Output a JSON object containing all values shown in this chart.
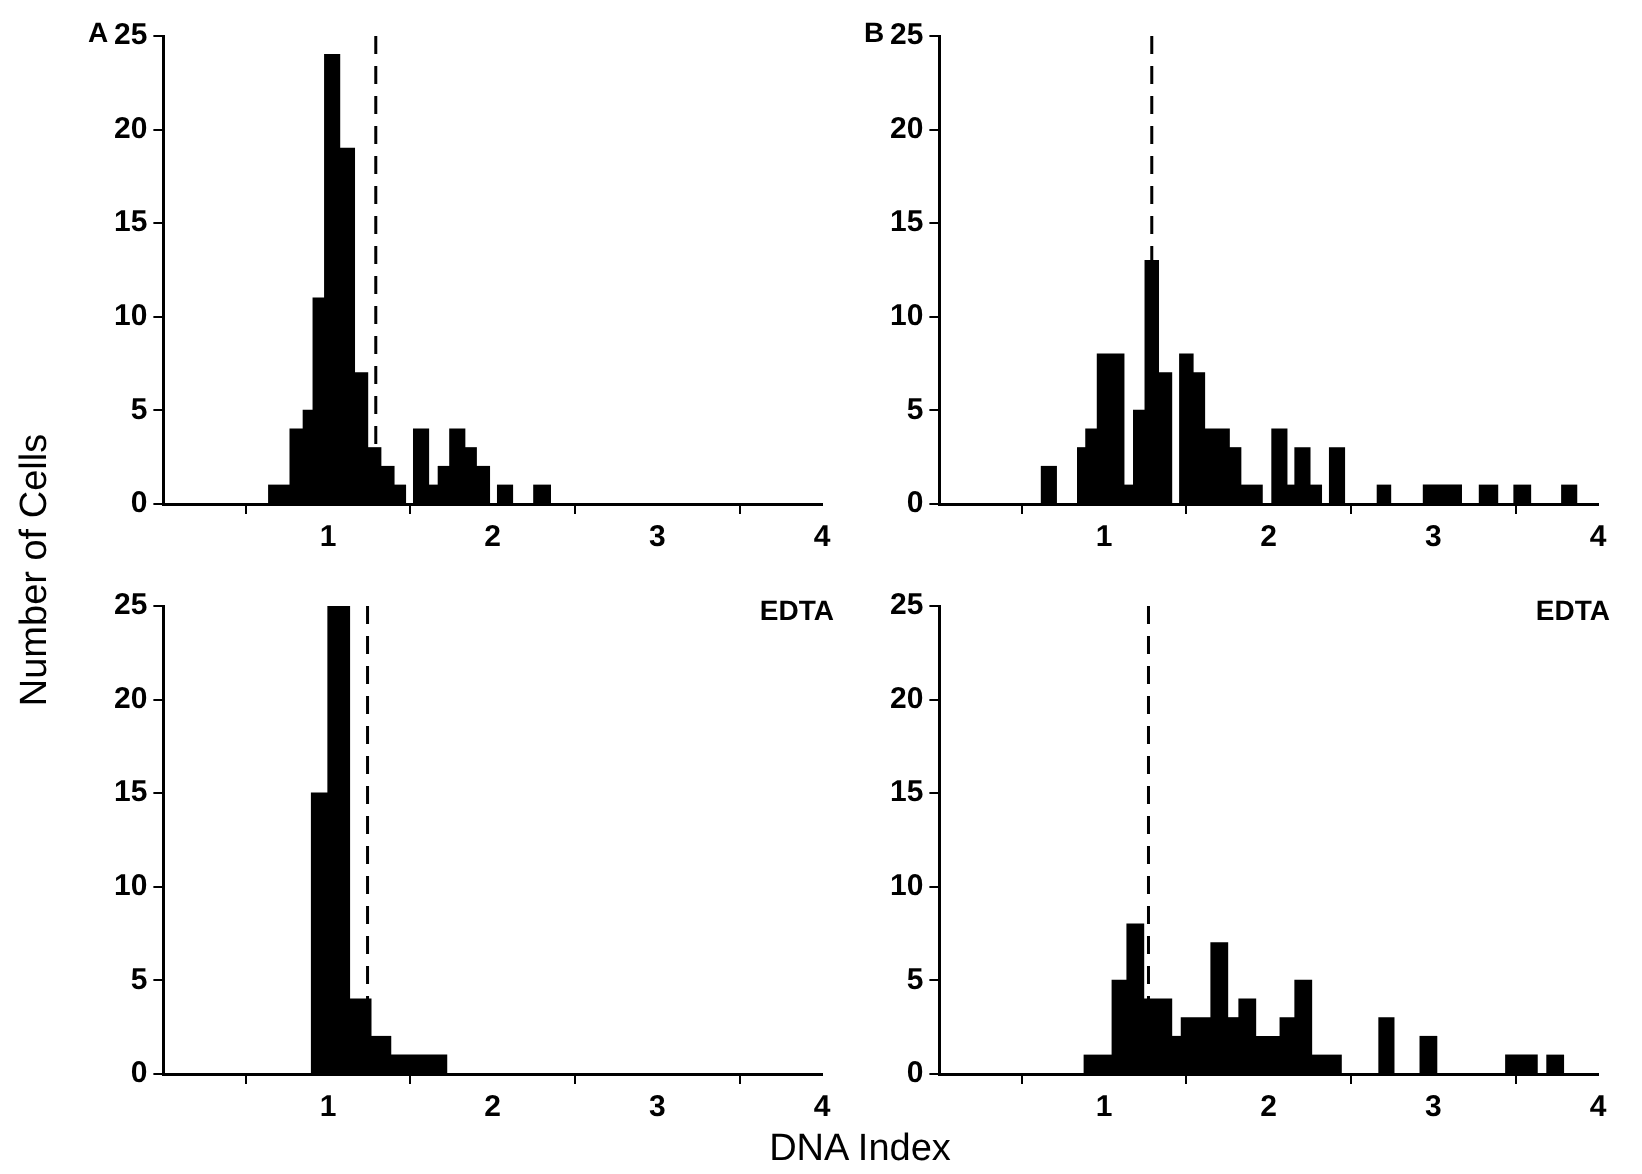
{
  "chart_data": [
    {
      "type": "histogram",
      "ylabel": "Number of Cells",
      "annotations": [
        "A"
      ],
      "color": "#000000",
      "bins": [
        0.64,
        0.77,
        0.85,
        0.91,
        0.98,
        1.07,
        1.16,
        1.24,
        1.32,
        1.4,
        1.47,
        1.52,
        1.61,
        1.67,
        1.74,
        1.83,
        1.9,
        1.98,
        2.03,
        2.12,
        2.25,
        2.35
      ],
      "values": [
        1,
        4,
        5,
        11,
        24,
        19,
        7,
        3,
        2,
        1,
        0,
        4,
        1,
        2,
        4,
        3,
        2,
        0,
        1,
        0,
        1
      ],
      "xlim": [
        0,
        4
      ],
      "xticks": [
        1,
        2,
        3,
        4
      ],
      "ylim": [
        0,
        25
      ],
      "yticks": [
        0,
        5,
        10,
        15,
        20,
        25
      ],
      "ref_lines": [
        {
          "axis": "x",
          "value": 1.29,
          "line_style": "dashed",
          "color": "#000000"
        }
      ]
    },
    {
      "type": "histogram",
      "annotations": [
        "B"
      ],
      "color": "#000000",
      "bins": [
        0.62,
        0.71,
        0.84,
        0.89,
        0.96,
        1.12,
        1.18,
        1.25,
        1.33,
        1.41,
        1.46,
        1.54,
        1.61,
        1.76,
        1.83,
        1.96,
        2.02,
        2.11,
        2.16,
        2.25,
        2.32,
        2.37,
        2.46,
        2.66,
        2.74,
        2.94,
        3.17,
        3.28,
        3.39,
        3.49,
        3.59,
        3.78,
        3.87
      ],
      "values": [
        2,
        0,
        3,
        4,
        8,
        1,
        5,
        13,
        7,
        0,
        8,
        7,
        4,
        3,
        1,
        0,
        4,
        1,
        3,
        1,
        0,
        3,
        0,
        1,
        0,
        1,
        0,
        1,
        0,
        1,
        0,
        1
      ],
      "xlim": [
        0,
        4
      ],
      "xticks": [
        1,
        2,
        3,
        4
      ],
      "ylim": [
        0,
        25
      ],
      "yticks": [
        0,
        5,
        10,
        15,
        20,
        25
      ],
      "ref_lines": [
        {
          "axis": "x",
          "value": 1.29,
          "line_style": "dashed",
          "color": "#000000"
        }
      ]
    },
    {
      "type": "histogram",
      "xlabel": "DNA Index",
      "annotations": [
        "EDTA"
      ],
      "color": "#000000",
      "bins": [
        0.9,
        1.0,
        1.13,
        1.26,
        1.38,
        1.72
      ],
      "values": [
        15,
        25,
        4,
        2,
        1
      ],
      "xlim": [
        0,
        4
      ],
      "xticks": [
        1,
        2,
        3,
        4
      ],
      "ylim": [
        0,
        25
      ],
      "yticks": [
        0,
        5,
        10,
        15,
        20,
        25
      ],
      "ref_lines": [
        {
          "axis": "x",
          "value": 1.24,
          "line_style": "dashed",
          "color": "#000000"
        }
      ]
    },
    {
      "type": "histogram",
      "annotations": [
        "EDTA"
      ],
      "color": "#000000",
      "bins": [
        0.88,
        1.05,
        1.14,
        1.24,
        1.41,
        1.47,
        1.65,
        1.75,
        1.82,
        1.92,
        2.07,
        2.16,
        2.26,
        2.44,
        2.67,
        2.76,
        2.92,
        3.02,
        3.44,
        3.63,
        3.69,
        3.79
      ],
      "values": [
        1,
        5,
        8,
        4,
        2,
        3,
        7,
        3,
        4,
        2,
        3,
        5,
        1,
        0,
        3,
        0,
        2,
        0,
        1,
        0,
        1
      ],
      "xlim": [
        0,
        4
      ],
      "xticks": [
        1,
        2,
        3,
        4
      ],
      "ylim": [
        0,
        25
      ],
      "yticks": [
        0,
        5,
        10,
        15,
        20,
        25
      ],
      "ref_lines": [
        {
          "axis": "x",
          "value": 1.27,
          "line_style": "dashed",
          "color": "#000000"
        }
      ]
    }
  ]
}
